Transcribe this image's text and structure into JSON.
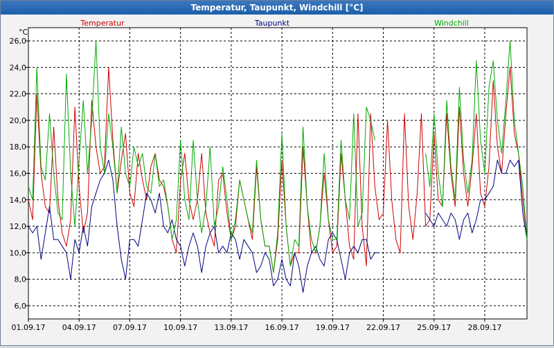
{
  "window": {
    "title": "Temperatur, Taupunkt, Windchill [°C]"
  },
  "chart_data": {
    "type": "line",
    "unit": "°C",
    "ylim": [
      5.0,
      27.0
    ],
    "yticks": [
      6,
      8,
      10,
      12,
      14,
      16,
      18,
      20,
      22,
      24,
      26
    ],
    "ytick_labels": [
      "6,0",
      "8,0",
      "10,0",
      "12,0",
      "14,0",
      "16,0",
      "18,0",
      "20,0",
      "22,0",
      "24,0",
      "26,0"
    ],
    "xlim": [
      0,
      29.5
    ],
    "xticks": [
      0,
      3,
      6,
      9,
      12,
      15,
      18,
      21,
      24,
      27
    ],
    "xtick_labels": [
      "01.09.17",
      "04.09.17",
      "07.09.17",
      "10.09.17",
      "13.09.17",
      "16.09.17",
      "19.09.17",
      "22.09.17",
      "25.09.17",
      "28.09.17"
    ],
    "grid": true,
    "series": [
      {
        "name": "Temperatur",
        "color": "#cc0000",
        "x": [
          0,
          0.25,
          0.5,
          0.75,
          1.0,
          1.25,
          1.5,
          1.75,
          2.0,
          2.25,
          2.5,
          2.75,
          3.0,
          3.25,
          3.5,
          3.75,
          4.0,
          4.25,
          4.5,
          4.75,
          5.0,
          5.25,
          5.5,
          5.75,
          6.0,
          6.25,
          6.5,
          6.75,
          7.0,
          7.25,
          7.5,
          7.75,
          8.0,
          8.25,
          8.5,
          8.75,
          9.0,
          9.25,
          9.5,
          9.75,
          10.0,
          10.25,
          10.5,
          10.75,
          11.0,
          11.25,
          11.5,
          11.75,
          12.0,
          12.25,
          12.5,
          12.75,
          13.0,
          13.25,
          13.5,
          13.75,
          14.0,
          14.25,
          14.5,
          14.75,
          15.0,
          15.25,
          15.5,
          15.75,
          16.0,
          16.25,
          16.5,
          16.75,
          17.0,
          17.25,
          17.5,
          17.75,
          18.0,
          18.25,
          18.5,
          18.75,
          19.0,
          19.25,
          19.5,
          19.75,
          20.0,
          20.25,
          20.5,
          20.75,
          21.0,
          21.25,
          21.5,
          21.75,
          22.0,
          22.25,
          22.5,
          22.75,
          23.0,
          23.25,
          23.5,
          23.75,
          24.0,
          24.25,
          24.5,
          24.75,
          25.0,
          25.25,
          25.5,
          25.75,
          26.0,
          26.25,
          26.5,
          26.75,
          27.0,
          27.25,
          27.5,
          27.75,
          28.0,
          28.25,
          28.5,
          28.75,
          29.0,
          29.25,
          29.5
        ],
        "values": [
          14.0,
          12.5,
          22.0,
          16.0,
          13.5,
          13.0,
          19.5,
          14.0,
          11.5,
          10.5,
          12.5,
          21.0,
          15.0,
          11.5,
          13.0,
          21.5,
          18.0,
          16.0,
          16.5,
          24.0,
          18.5,
          14.5,
          17.0,
          19.0,
          14.5,
          13.5,
          17.5,
          15.5,
          14.0,
          16.5,
          17.5,
          15.5,
          15.0,
          13.5,
          11.0,
          10.0,
          15.5,
          17.5,
          14.0,
          12.5,
          14.0,
          17.5,
          13.0,
          11.5,
          10.5,
          15.5,
          16.0,
          13.0,
          11.0,
          12.0,
          15.5,
          14.0,
          12.5,
          11.0,
          16.5,
          12.5,
          10.5,
          10.5,
          8.5,
          11.0,
          17.0,
          12.0,
          9.0,
          10.0,
          10.0,
          18.0,
          13.5,
          10.0,
          10.0,
          12.0,
          16.0,
          12.5,
          10.0,
          10.5,
          17.5,
          14.0,
          10.5,
          9.5,
          20.5,
          12.0,
          9.0,
          20.5,
          15.0,
          12.5,
          13.0,
          20.0,
          14.0,
          11.0,
          10.0,
          20.5,
          13.5,
          11.0,
          14.5,
          20.5,
          12.0,
          12.5,
          19.0,
          14.0,
          13.5,
          20.5,
          16.0,
          13.5,
          21.0,
          16.0,
          13.5,
          16.5,
          20.5,
          14.5,
          13.5,
          16.5,
          23.0,
          18.0,
          16.0,
          20.5,
          24.0,
          19.0,
          17.5,
          14.0,
          11.0
        ],
        "gaps": []
      },
      {
        "name": "Taupunkt",
        "color": "#000080",
        "x": [
          0,
          0.25,
          0.5,
          0.75,
          1.0,
          1.25,
          1.5,
          1.75,
          2.0,
          2.25,
          2.5,
          2.75,
          3.0,
          3.25,
          3.5,
          3.75,
          4.0,
          4.25,
          4.5,
          4.75,
          5.0,
          5.25,
          5.5,
          5.75,
          6.0,
          6.25,
          6.5,
          6.75,
          7.0,
          7.25,
          7.5,
          7.75,
          8.0,
          8.25,
          8.5,
          8.75,
          9.0,
          9.25,
          9.5,
          9.75,
          10.0,
          10.25,
          10.5,
          10.75,
          11.0,
          11.25,
          11.5,
          11.75,
          12.0,
          12.25,
          12.5,
          12.75,
          13.0,
          13.25,
          13.5,
          13.75,
          14.0,
          14.25,
          14.5,
          14.75,
          15.0,
          15.25,
          15.5,
          15.75,
          16.0,
          16.25,
          16.5,
          16.75,
          17.0,
          17.25,
          17.5,
          17.75,
          18.0,
          18.25,
          18.5,
          18.75,
          19.0,
          19.25,
          19.5,
          19.75,
          20.0,
          20.25,
          20.5,
          20.75,
          21.0,
          21.25,
          21.5,
          21.75,
          22.0,
          22.25,
          22.5,
          22.75,
          23.0,
          23.25,
          23.5,
          23.75,
          24.0,
          24.25,
          24.5,
          24.75,
          25.0,
          25.25,
          25.5,
          25.75,
          26.0,
          26.25,
          26.5,
          26.75,
          27.0,
          27.25,
          27.5,
          27.75,
          28.0,
          28.25,
          28.5,
          28.75,
          29.0,
          29.25,
          29.5
        ],
        "values": [
          12.0,
          11.5,
          12.0,
          9.5,
          11.5,
          13.5,
          11.0,
          11.0,
          10.5,
          10.0,
          8.0,
          11.0,
          10.0,
          12.0,
          10.5,
          13.5,
          14.5,
          15.5,
          16.0,
          17.0,
          15.5,
          12.0,
          9.5,
          8.0,
          11.0,
          11.0,
          10.5,
          12.5,
          14.5,
          14.0,
          13.0,
          14.5,
          12.0,
          11.5,
          12.5,
          11.0,
          10.5,
          9.0,
          10.5,
          11.5,
          10.5,
          8.5,
          10.5,
          11.5,
          12.0,
          10.0,
          10.5,
          10.0,
          11.5,
          11.0,
          9.5,
          11.0,
          10.5,
          10.0,
          8.5,
          9.0,
          10.0,
          9.5,
          7.5,
          8.0,
          9.5,
          8.0,
          7.5,
          10.0,
          9.0,
          7.0,
          9.0,
          10.0,
          10.5,
          9.5,
          9.0,
          11.0,
          11.5,
          11.0,
          9.5,
          8.0,
          10.0,
          10.5,
          10.0,
          11.0,
          11.0,
          9.5,
          10.0,
          10.0,
          null,
          null,
          null,
          null,
          null,
          null,
          null,
          null,
          null,
          null,
          13.0,
          12.5,
          12.0,
          13.0,
          12.5,
          12.0,
          13.0,
          12.5,
          11.0,
          12.5,
          13.0,
          11.5,
          12.5,
          14.0,
          14.0,
          14.5,
          15.0,
          17.0,
          16.0,
          16.0,
          17.0,
          16.5,
          17.0,
          13.0,
          11.0
        ],
        "gaps": []
      },
      {
        "name": "Windchill",
        "color": "#00aa00",
        "x": [
          0,
          0.25,
          0.5,
          0.75,
          1.0,
          1.25,
          1.5,
          1.75,
          2.0,
          2.25,
          2.5,
          2.75,
          3.0,
          3.25,
          3.5,
          3.75,
          4.0,
          4.25,
          4.5,
          4.75,
          5.0,
          5.25,
          5.5,
          5.75,
          6.0,
          6.25,
          6.5,
          6.75,
          7.0,
          7.25,
          7.5,
          7.75,
          8.0,
          8.25,
          8.5,
          8.75,
          9.0,
          9.25,
          9.5,
          9.75,
          10.0,
          10.25,
          10.5,
          10.75,
          11.0,
          11.25,
          11.5,
          11.75,
          12.0,
          12.25,
          12.5,
          12.75,
          13.0,
          13.25,
          13.5,
          13.75,
          14.0,
          14.25,
          14.5,
          14.75,
          15.0,
          15.25,
          15.5,
          15.75,
          16.0,
          16.25,
          16.5,
          16.75,
          17.0,
          17.25,
          17.5,
          17.75,
          18.0,
          18.25,
          18.5,
          18.75,
          19.0,
          19.25,
          19.5,
          19.75,
          20.0,
          20.25,
          20.5,
          20.75,
          21.0,
          21.25,
          21.5,
          21.75,
          22.0,
          22.25,
          22.5,
          22.75,
          23.0,
          23.25,
          23.5,
          23.75,
          24.0,
          24.25,
          24.5,
          24.75,
          25.0,
          25.25,
          25.5,
          25.75,
          26.0,
          26.25,
          26.5,
          26.75,
          27.0,
          27.25,
          27.5,
          27.75,
          28.0,
          28.25,
          28.5,
          28.75,
          29.0,
          29.25,
          29.5
        ],
        "values": [
          15.0,
          14.0,
          24.0,
          16.5,
          15.5,
          20.5,
          16.0,
          13.0,
          12.5,
          23.5,
          16.0,
          12.0,
          17.0,
          21.5,
          16.0,
          20.0,
          26.0,
          18.0,
          16.0,
          20.5,
          18.0,
          14.5,
          19.5,
          16.0,
          15.0,
          18.0,
          16.5,
          17.5,
          15.0,
          14.5,
          17.5,
          15.0,
          15.5,
          13.5,
          11.0,
          12.5,
          18.5,
          14.0,
          12.5,
          18.5,
          14.0,
          11.5,
          13.5,
          18.0,
          12.0,
          13.5,
          16.5,
          14.0,
          11.0,
          12.5,
          15.5,
          14.0,
          12.5,
          11.5,
          17.0,
          12.5,
          10.5,
          10.5,
          8.5,
          11.5,
          19.0,
          12.0,
          9.0,
          11.0,
          10.5,
          19.5,
          13.5,
          11.0,
          10.0,
          12.0,
          17.5,
          12.5,
          11.0,
          11.0,
          18.5,
          14.0,
          12.5,
          20.5,
          12.0,
          13.0,
          21.0,
          20.0,
          18.5,
          null,
          null,
          null,
          null,
          null,
          null,
          null,
          null,
          null,
          null,
          null,
          17.5,
          15.0,
          20.5,
          16.0,
          13.5,
          21.5,
          16.5,
          14.0,
          22.5,
          17.0,
          14.5,
          17.0,
          24.5,
          18.5,
          16.0,
          22.5,
          24.5,
          20.0,
          17.5,
          21.5,
          26.0,
          20.0,
          17.5,
          15.0,
          11.0
        ],
        "gaps": []
      }
    ]
  }
}
